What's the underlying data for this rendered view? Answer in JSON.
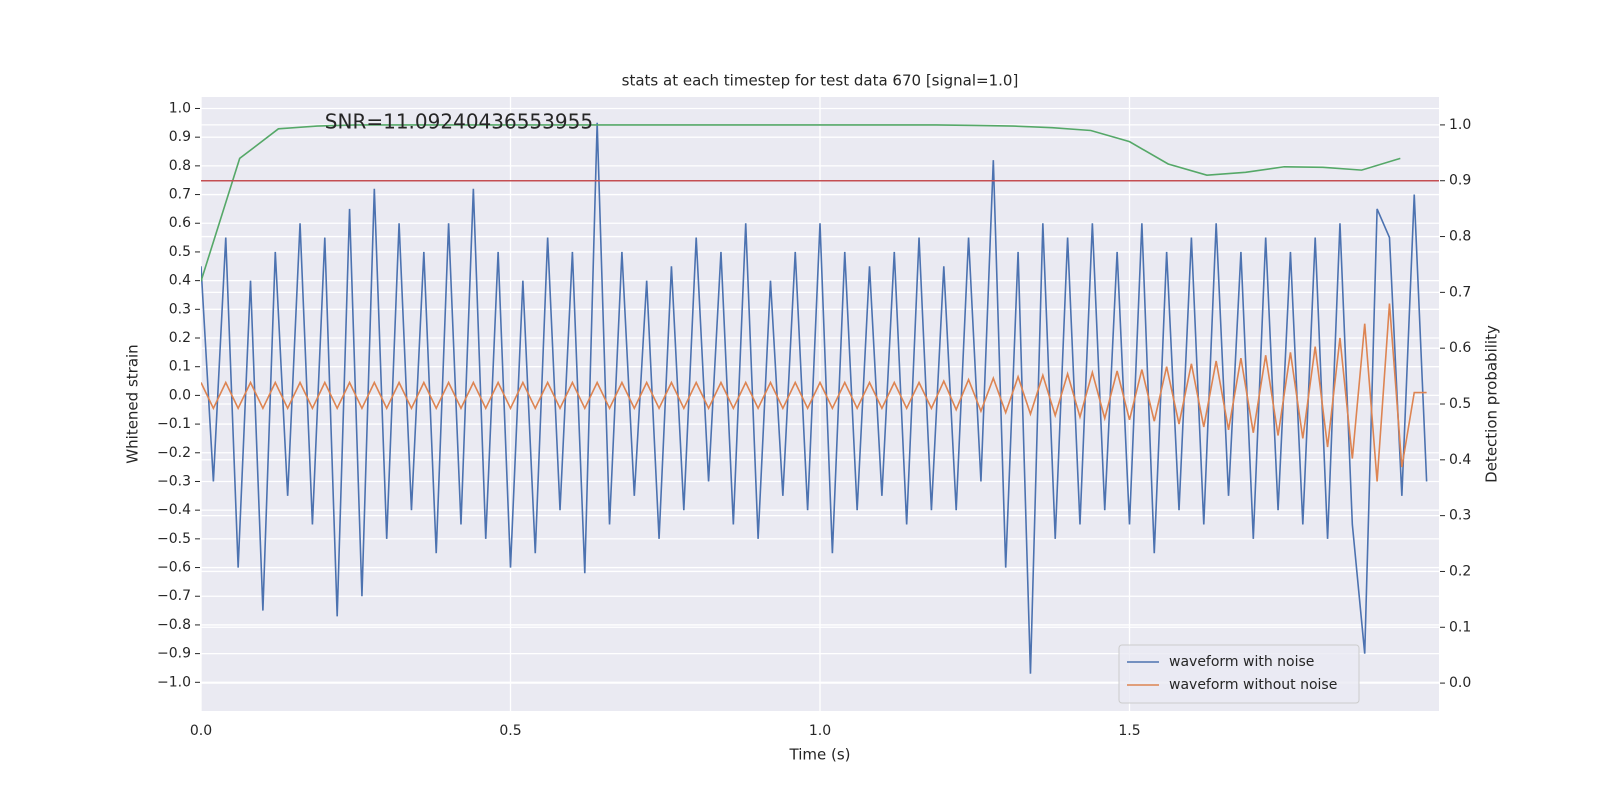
{
  "chart_data": {
    "type": "line",
    "title": "stats at each timestep for test data 670 [signal=1.0]",
    "x_label": "Time (s)",
    "y_label": "Whitened strain",
    "y2_label": "Detection probability",
    "annotation": {
      "text": "SNR=11.09240436553955",
      "x": 0.2,
      "y": 0.95
    },
    "xlim": [
      0,
      2.0
    ],
    "ylim": [
      -1.1,
      1.04
    ],
    "y2lim": [
      -0.05,
      1.05
    ],
    "xticks": [
      {
        "value": 0,
        "label": "0.0"
      },
      0.5,
      {
        "value": 1,
        "label": "1.0"
      },
      1.5
    ],
    "yticks": [
      {
        "value": -1,
        "label": "−1.0"
      },
      {
        "value": -0.9,
        "label": "−0.9"
      },
      {
        "value": -0.8,
        "label": "−0.8"
      },
      {
        "value": -0.7,
        "label": "−0.7"
      },
      {
        "value": -0.6,
        "label": "−0.6"
      },
      {
        "value": -0.5,
        "label": "−0.5"
      },
      {
        "value": -0.4,
        "label": "−0.4"
      },
      {
        "value": -0.3,
        "label": "−0.3"
      },
      {
        "value": -0.2,
        "label": "−0.2"
      },
      {
        "value": -0.1,
        "label": "−0.1"
      },
      {
        "value": 0,
        "label": "0.0"
      },
      0.1,
      0.2,
      0.3,
      0.4,
      0.5,
      0.6,
      0.7,
      0.8,
      0.9,
      {
        "value": 1,
        "label": "1.0"
      }
    ],
    "y2ticks": [
      {
        "value": 0,
        "label": "0.0"
      },
      0.1,
      0.2,
      0.3,
      0.4,
      0.5,
      0.6,
      0.7,
      0.8,
      0.9,
      {
        "value": 1,
        "label": "1.0"
      }
    ],
    "grid": true,
    "legend": "lower right",
    "x": [
      0,
      0.02,
      0.04,
      0.06,
      0.08,
      0.1,
      0.12,
      0.14,
      0.16,
      0.18,
      0.2,
      0.22,
      0.24,
      0.26,
      0.28,
      0.3,
      0.32,
      0.34,
      0.36,
      0.38,
      0.4,
      0.42,
      0.44,
      0.46,
      0.48,
      0.5,
      0.52,
      0.54,
      0.56,
      0.58,
      0.6,
      0.62,
      0.64,
      0.66,
      0.68,
      0.7,
      0.72,
      0.74,
      0.76,
      0.78,
      0.8,
      0.82,
      0.84,
      0.86,
      0.88,
      0.9,
      0.92,
      0.94,
      0.96,
      0.98,
      1,
      1.02,
      1.04,
      1.06,
      1.08,
      1.1,
      1.12,
      1.14,
      1.16,
      1.18,
      1.2,
      1.22,
      1.24,
      1.26,
      1.28,
      1.3,
      1.32,
      1.34,
      1.36,
      1.38,
      1.4,
      1.42,
      1.44,
      1.46,
      1.48,
      1.5,
      1.52,
      1.54,
      1.56,
      1.58,
      1.6,
      1.62,
      1.64,
      1.66,
      1.68,
      1.7,
      1.72,
      1.74,
      1.76,
      1.78,
      1.8,
      1.82,
      1.84,
      1.86,
      1.88,
      1.9,
      1.92,
      1.94,
      1.96,
      1.98
    ],
    "series": [
      {
        "name": "waveform with noise",
        "color": "#4c72b0",
        "values": [
          0.45,
          -0.3,
          0.55,
          -0.6,
          0.4,
          -0.75,
          0.5,
          -0.35,
          0.6,
          -0.45,
          0.55,
          -0.77,
          0.65,
          -0.7,
          0.72,
          -0.5,
          0.6,
          -0.4,
          0.5,
          -0.55,
          0.6,
          -0.45,
          0.72,
          -0.5,
          0.5,
          -0.6,
          0.4,
          -0.55,
          0.55,
          -0.4,
          0.5,
          -0.62,
          0.95,
          -0.45,
          0.5,
          -0.35,
          0.4,
          -0.5,
          0.45,
          -0.4,
          0.55,
          -0.3,
          0.5,
          -0.45,
          0.6,
          -0.5,
          0.4,
          -0.35,
          0.5,
          -0.4,
          0.6,
          -0.55,
          0.5,
          -0.4,
          0.45,
          -0.35,
          0.5,
          -0.45,
          0.55,
          -0.4,
          0.45,
          -0.4,
          0.55,
          -0.3,
          0.82,
          -0.6,
          0.5,
          -0.97,
          0.6,
          -0.5,
          0.55,
          -0.45,
          0.6,
          -0.4,
          0.5,
          -0.45,
          0.6,
          -0.55,
          0.5,
          -0.4,
          0.55,
          -0.45,
          0.6,
          -0.35,
          0.5,
          -0.5,
          0.55,
          -0.4,
          0.5,
          -0.45,
          0.55,
          -0.5,
          0.6,
          -0.45,
          -0.9,
          0.65,
          0.55,
          -0.35,
          0.7,
          -0.3
        ]
      },
      {
        "name": "waveform without noise",
        "color": "#dd8452",
        "values": [
          0.045,
          -0.045,
          0.045,
          -0.045,
          0.045,
          -0.045,
          0.045,
          -0.045,
          0.045,
          -0.045,
          0.045,
          -0.045,
          0.045,
          -0.045,
          0.045,
          -0.045,
          0.045,
          -0.045,
          0.045,
          -0.045,
          0.045,
          -0.045,
          0.045,
          -0.045,
          0.045,
          -0.045,
          0.045,
          -0.045,
          0.045,
          -0.045,
          0.045,
          -0.045,
          0.045,
          -0.045,
          0.045,
          -0.045,
          0.045,
          -0.045,
          0.045,
          -0.045,
          0.045,
          -0.045,
          0.045,
          -0.045,
          0.045,
          -0.045,
          0.045,
          -0.045,
          0.045,
          -0.045,
          0.045,
          -0.045,
          0.045,
          -0.045,
          0.045,
          -0.045,
          0.045,
          -0.045,
          0.045,
          -0.045,
          0.05,
          -0.05,
          0.055,
          -0.055,
          0.06,
          -0.06,
          0.065,
          -0.065,
          0.07,
          -0.07,
          0.075,
          -0.075,
          0.08,
          -0.08,
          0.085,
          -0.085,
          0.09,
          -0.09,
          0.1,
          -0.1,
          0.11,
          -0.11,
          0.12,
          -0.12,
          0.13,
          -0.13,
          0.14,
          -0.14,
          0.15,
          -0.15,
          0.17,
          -0.18,
          0.2,
          -0.22,
          0.25,
          -0.3,
          0.32,
          -0.25,
          0.01,
          0.01
        ]
      },
      {
        "axis": "y2",
        "color": "#55a868",
        "x": [
          0,
          0.0625,
          0.125,
          0.1875,
          0.25,
          0.3125,
          0.375,
          0.4375,
          0.5,
          0.5625,
          0.625,
          0.6875,
          0.75,
          0.8125,
          0.875,
          0.9375,
          1,
          1.0625,
          1.125,
          1.1875,
          1.25,
          1.3125,
          1.375,
          1.4375,
          1.5,
          1.5625,
          1.625,
          1.6875,
          1.75,
          1.8125,
          1.875,
          1.9375
        ],
        "values": [
          0.72,
          0.94,
          0.993,
          0.998,
          1,
          1,
          1,
          1,
          1,
          1,
          1,
          1,
          1,
          1,
          1,
          1,
          1,
          1,
          1,
          1,
          0.999,
          0.998,
          0.995,
          0.99,
          0.97,
          0.93,
          0.91,
          0.915,
          0.925,
          0.924,
          0.919,
          0.94
        ]
      }
    ],
    "hlines": [
      {
        "value": 0.9,
        "axis": "y2",
        "color": "#c44e52"
      }
    ]
  }
}
